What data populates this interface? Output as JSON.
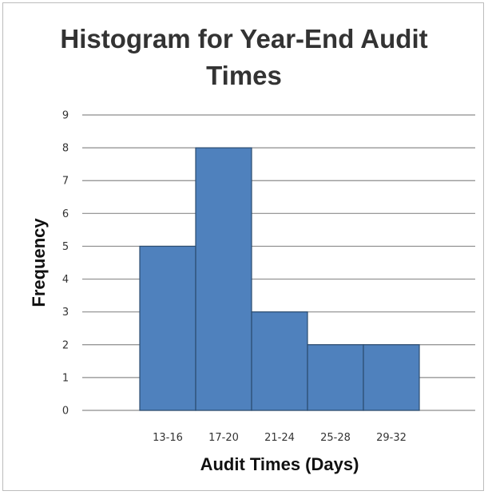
{
  "chart_data": {
    "type": "bar",
    "title_lines": [
      "Histogram for Year-End Audit",
      "Times"
    ],
    "xlabel": "Audit Times (Days)",
    "ylabel": "Frequency",
    "categories": [
      "13-16",
      "17-20",
      "21-24",
      "25-28",
      "29-32"
    ],
    "values": [
      5,
      8,
      3,
      2,
      2
    ],
    "ylim": [
      0,
      9
    ],
    "yticks": [
      0,
      1,
      2,
      3,
      4,
      5,
      6,
      7,
      8,
      9
    ],
    "grid": true,
    "legend": "none",
    "bar_gap": 0
  },
  "colors": {
    "bar_fill": "#4f81bd",
    "bar_edge": "#2b4c70",
    "grid": "#8c8c8c",
    "text": "#333333"
  }
}
